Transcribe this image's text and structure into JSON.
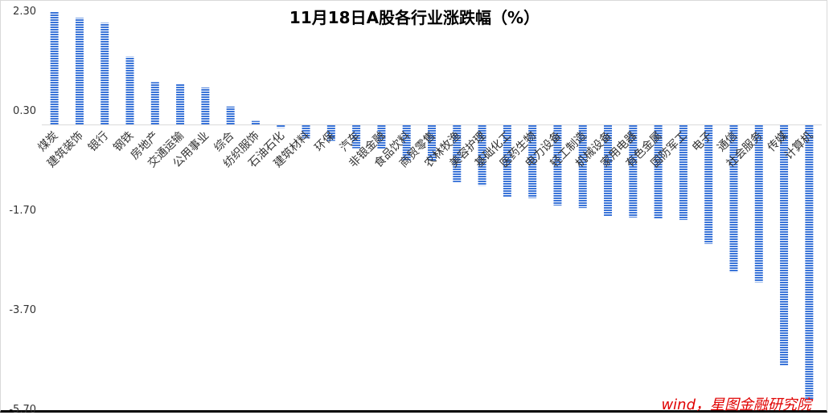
{
  "chart_data": {
    "type": "bar",
    "title": "11月18日A股各行业涨跌幅（%）",
    "source": "wind，星图金融研究院",
    "ylim": [
      -5.7,
      2.3
    ],
    "yticks": [
      "2.30",
      "0.30",
      "-1.70",
      "-3.70",
      "-5.70"
    ],
    "bar_color": "#3a74d8",
    "categories": [
      "煤炭",
      "建筑装饰",
      "银行",
      "钢铁",
      "房地产",
      "交通运输",
      "公用事业",
      "综合",
      "纺织服饰",
      "石油石化",
      "建筑材料",
      "环保",
      "汽车",
      "非银金融",
      "食品饮料",
      "商贸零售",
      "农林牧渔",
      "美容护理",
      "基础化工",
      "医药生物",
      "电力设备",
      "轻工制造",
      "机械设备",
      "家用电器",
      "有色金属",
      "国防军工",
      "电子",
      "通信",
      "社会服务",
      "传媒",
      "计算机"
    ],
    "values": [
      2.27,
      2.15,
      2.05,
      1.37,
      0.86,
      0.83,
      0.75,
      0.37,
      0.08,
      -0.06,
      -0.27,
      -0.32,
      -0.47,
      -0.49,
      -0.71,
      -0.73,
      -1.15,
      -1.22,
      -1.45,
      -1.47,
      -1.62,
      -1.67,
      -1.84,
      -1.86,
      -1.89,
      -1.91,
      -2.39,
      -2.96,
      -3.16,
      -4.83,
      -5.53
    ]
  }
}
